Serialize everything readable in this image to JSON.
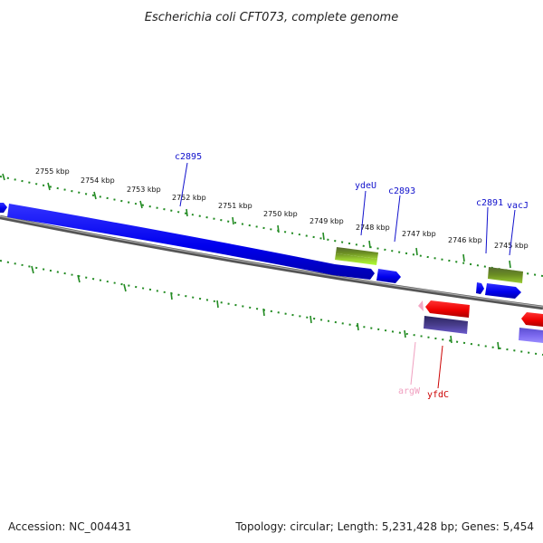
{
  "title": "Escherichia coli CFT073, complete genome",
  "footer": {
    "accession": "Accession: NC_004431",
    "summary": "Topology: circular; Length: 5,231,428 bp; Genes: 5,454"
  },
  "ticks": [
    "2755 kbp",
    "2754 kbp",
    "2753 kbp",
    "2752 kbp",
    "2751 kbp",
    "2750 kbp",
    "2749 kbp",
    "2748 kbp",
    "2747 kbp",
    "2746 kbp",
    "2745 kbp"
  ],
  "genes": {
    "c2895": {
      "label": "c2895",
      "color": "#1010cc"
    },
    "ydeU": {
      "label": "ydeU",
      "color": "#1010cc"
    },
    "c2893": {
      "label": "c2893",
      "color": "#1010cc"
    },
    "c2891": {
      "label": "c2891",
      "color": "#1010cc"
    },
    "vacJ": {
      "label": "vacJ",
      "color": "#1010cc"
    },
    "argW": {
      "label": "argW",
      "color": "#f0a0c0"
    },
    "yfdC": {
      "label": "yfdC",
      "color": "#cc0000"
    }
  },
  "colors": {
    "forward_gene": "#0000ff",
    "reverse_gene": "#ff0000",
    "green_feature": "#6b8e23",
    "lime_feature": "#9acd32",
    "purple_feature": "#483d8b",
    "light_purple_feature": "#7b68ee",
    "backbone": "#808080",
    "tick_dots": "#228b22"
  }
}
